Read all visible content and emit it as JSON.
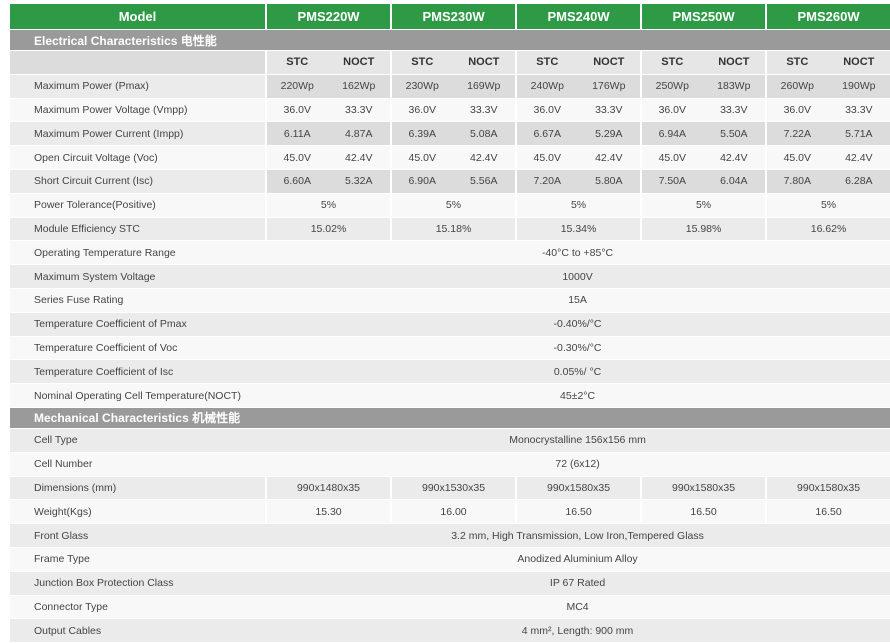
{
  "header": {
    "model": "Model",
    "models": [
      "PMS220W",
      "PMS230W",
      "PMS240W",
      "PMS250W",
      "PMS260W"
    ]
  },
  "electrical": {
    "title": "Electrical Characteristics 电性能",
    "subheaders": [
      "STC",
      "NOCT"
    ],
    "rows": [
      {
        "label": "Maximum Power (Pmax)",
        "values": [
          "220Wp",
          "162Wp",
          "230Wp",
          "169Wp",
          "240Wp",
          "176Wp",
          "250Wp",
          "183Wp",
          "260Wp",
          "190Wp"
        ]
      },
      {
        "label": "Maximum Power Voltage (Vmpp)",
        "values": [
          "36.0V",
          "33.3V",
          "36.0V",
          "33.3V",
          "36.0V",
          "33.3V",
          "36.0V",
          "33.3V",
          "36.0V",
          "33.3V"
        ]
      },
      {
        "label": "Maximum Power Current (Impp)",
        "values": [
          "6.11A",
          "4.87A",
          "6.39A",
          "5.08A",
          "6.67A",
          "5.29A",
          "6.94A",
          "5.50A",
          "7.22A",
          "5.71A"
        ]
      },
      {
        "label": "Open Circuit Voltage (Voc)",
        "values": [
          "45.0V",
          "42.4V",
          "45.0V",
          "42.4V",
          "45.0V",
          "42.4V",
          "45.0V",
          "42.4V",
          "45.0V",
          "42.4V"
        ]
      },
      {
        "label": "Short Circuit Current (Isc)",
        "values": [
          "6.60A",
          "5.32A",
          "6.90A",
          "5.56A",
          "7.20A",
          "5.80A",
          "7.50A",
          "6.04A",
          "7.80A",
          "6.28A"
        ]
      },
      {
        "label": "Power Tolerance(Positive)",
        "values": [
          "5%",
          "5%",
          "5%",
          "5%",
          "5%"
        ]
      },
      {
        "label": "Module Efficiency STC",
        "values": [
          "15.02%",
          "15.18%",
          "15.34%",
          "15.98%",
          "16.62%"
        ]
      },
      {
        "label": "Operating Temperature Range",
        "value": "-40°C to +85°C"
      },
      {
        "label": "Maximum System Voltage",
        "value": "1000V"
      },
      {
        "label": "Series Fuse Rating",
        "value": "15A"
      },
      {
        "label": "Temperature Coefficient of Pmax",
        "value": "-0.40%/°C"
      },
      {
        "label": "Temperature Coefficient of Voc",
        "value": "-0.30%/°C"
      },
      {
        "label": "Temperature Coefficient of Isc",
        "value": "0.05%/ °C"
      },
      {
        "label": "Nominal Operating Cell Temperature(NOCT)",
        "value": "45±2°C"
      }
    ]
  },
  "mechanical": {
    "title": "Mechanical Characteristics 机械性能",
    "rows": [
      {
        "label": "Cell Type",
        "value": "Monocrystalline 156x156 mm"
      },
      {
        "label": "Cell Number",
        "value": "72 (6x12)"
      },
      {
        "label": "Dimensions (mm)",
        "values": [
          "990x1480x35",
          "990x1530x35",
          "990x1580x35",
          "990x1580x35",
          "990x1580x35"
        ]
      },
      {
        "label": "Weight(Kgs)",
        "values": [
          "15.30",
          "16.00",
          "16.50",
          "16.50",
          "16.50"
        ]
      },
      {
        "label": "Front Glass",
        "value": "3.2 mm, High Transmission, Low Iron,Tempered Glass"
      },
      {
        "label": "Frame Type",
        "value": "Anodized Aluminium Alloy"
      },
      {
        "label": "Junction Box Protection Class",
        "value": "IP 67 Rated"
      },
      {
        "label": "Connector Type",
        "value": "MC4"
      },
      {
        "label": "Output Cables",
        "value": "4 mm², Length: 900 mm"
      }
    ]
  }
}
